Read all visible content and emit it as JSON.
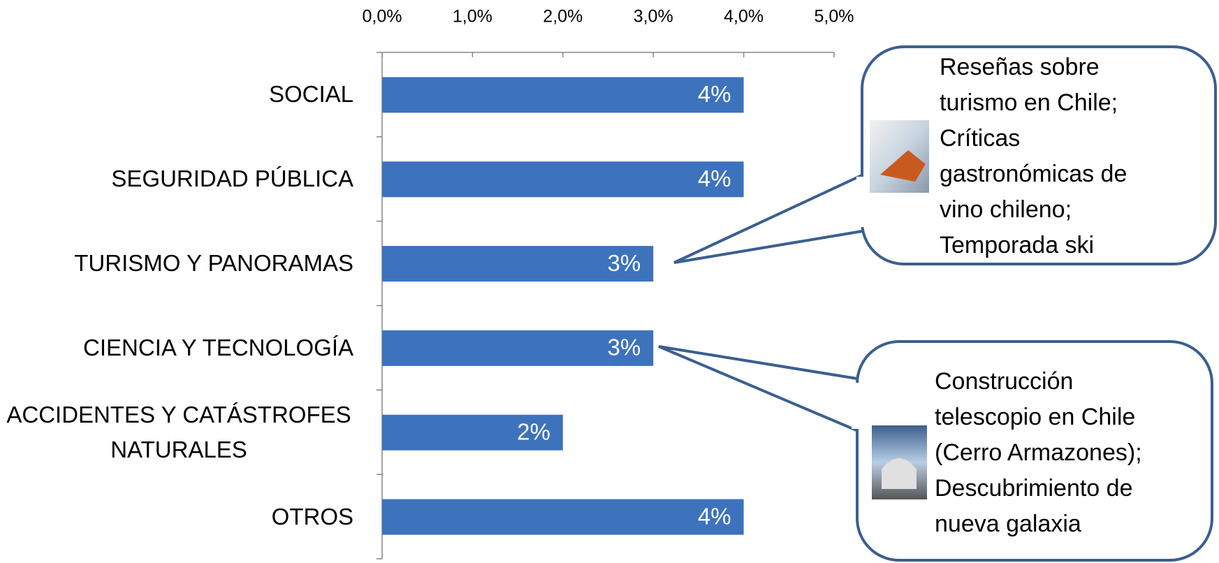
{
  "chart_data": {
    "type": "barh",
    "categories": [
      "SOCIAL",
      "SEGURIDAD PÚBLICA",
      "TURISMO Y PANORAMAS",
      "CIENCIA Y TECNOLOGÍA",
      "ACCIDENTES Y CATÁSTROFES NATURALES",
      "OTROS"
    ],
    "values": [
      4,
      4,
      3,
      3,
      2,
      4
    ],
    "value_labels": [
      "4%",
      "4%",
      "3%",
      "3%",
      "2%",
      "4%"
    ],
    "color": "#3d72bd",
    "xlim": [
      0,
      5
    ],
    "xticks": [
      {
        "value": 0,
        "label": "0,0%"
      },
      {
        "value": 1,
        "label": "1,0%"
      },
      {
        "value": 2,
        "label": "2,0%"
      },
      {
        "value": 3,
        "label": "3,0%"
      },
      {
        "value": 4,
        "label": "4,0%"
      },
      {
        "value": 5,
        "label": "5,0%"
      }
    ],
    "annotations": [
      {
        "lines": [
          "Reseñas sobre",
          "turismo en Chile;",
          "Críticas",
          "gastronómicas de",
          "vino chileno;",
          "Temporada ski"
        ]
      },
      {
        "lines": [
          "Construcción",
          "telescopio en Chile",
          "(Cerro Armazones);",
          "Descubrimiento de",
          "nueva galaxia"
        ]
      }
    ]
  }
}
